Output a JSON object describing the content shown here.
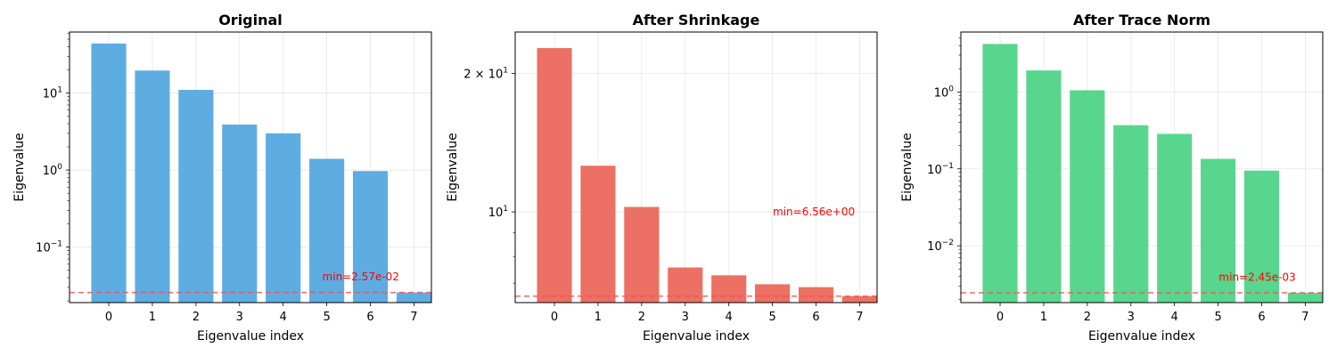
{
  "chart_data": [
    {
      "type": "bar",
      "title": "Original",
      "xlabel": "Eigenvalue index",
      "ylabel": "Eigenvalue",
      "yscale": "log",
      "ylim": [
        0.019,
        62
      ],
      "categories": [
        "0",
        "1",
        "2",
        "3",
        "4",
        "5",
        "6",
        "7"
      ],
      "values": [
        44.0,
        19.6,
        11.0,
        3.9,
        3.0,
        1.4,
        0.97,
        0.0257
      ],
      "yticks": [
        {
          "value": 0.1,
          "base": "10",
          "exp": "−1"
        },
        {
          "value": 1,
          "base": "10",
          "exp": "0"
        },
        {
          "value": 10,
          "base": "10",
          "exp": "1"
        }
      ],
      "minor_ticks": [
        0.02,
        0.03,
        0.04,
        0.05,
        0.06,
        0.07,
        0.08,
        0.09,
        0.2,
        0.3,
        0.4,
        0.5,
        0.6,
        0.7,
        0.8,
        0.9,
        2,
        3,
        4,
        5,
        6,
        7,
        8,
        9,
        20,
        30,
        40,
        50,
        60
      ],
      "bar_color": "#5DADE2",
      "min_line": {
        "value": 0.0257,
        "label": "min=2.57e-02",
        "label_at": 5.78,
        "label_value": 0.041
      },
      "grid": true
    },
    {
      "type": "bar",
      "title": "After Shrinkage",
      "xlabel": "Eigenvalue index",
      "ylabel": "Eigenvalue",
      "yscale": "log",
      "ylim": [
        6.35,
        24.6
      ],
      "categories": [
        "0",
        "1",
        "2",
        "3",
        "4",
        "5",
        "6",
        "7"
      ],
      "values": [
        22.7,
        12.6,
        10.25,
        7.57,
        7.28,
        6.96,
        6.86,
        6.56
      ],
      "yticks": [
        {
          "value": 10,
          "base": "10",
          "exp": "1"
        },
        {
          "value": 20,
          "base": "2 × 10",
          "exp": "1"
        }
      ],
      "minor_ticks": [
        7,
        8,
        9
      ],
      "bar_color": "#EC7063",
      "min_line": {
        "value": 6.56,
        "label": "min=6.56e+00",
        "label_at": 5.95,
        "label_value": 10.0
      },
      "grid": true
    },
    {
      "type": "bar",
      "title": "After Trace Norm",
      "xlabel": "Eigenvalue index",
      "ylabel": "Eigenvalue",
      "yscale": "log",
      "ylim": [
        0.00183,
        6.0
      ],
      "categories": [
        "0",
        "1",
        "2",
        "3",
        "4",
        "5",
        "6",
        "7"
      ],
      "values": [
        4.2,
        1.9,
        1.05,
        0.37,
        0.285,
        0.135,
        0.095,
        0.00245
      ],
      "yticks": [
        {
          "value": 0.01,
          "base": "10",
          "exp": "−2"
        },
        {
          "value": 0.1,
          "base": "10",
          "exp": "−1"
        },
        {
          "value": 1,
          "base": "10",
          "exp": "0"
        }
      ],
      "minor_ticks": [
        0.002,
        0.003,
        0.004,
        0.005,
        0.006,
        0.007,
        0.008,
        0.009,
        0.02,
        0.03,
        0.04,
        0.05,
        0.06,
        0.07,
        0.08,
        0.09,
        0.2,
        0.3,
        0.4,
        0.5,
        0.6,
        0.7,
        0.8,
        0.9,
        2,
        3,
        4,
        5
      ],
      "bar_color": "#58D68D",
      "min_line": {
        "value": 0.00245,
        "label": "min=2.45e-03",
        "label_at": 5.9,
        "label_value": 0.0039
      },
      "grid": true
    }
  ],
  "colors": {
    "min_line": "#FF4D4D",
    "min_label": "#FF0000",
    "grid": "#E6E6E6",
    "axis": "#000000"
  }
}
